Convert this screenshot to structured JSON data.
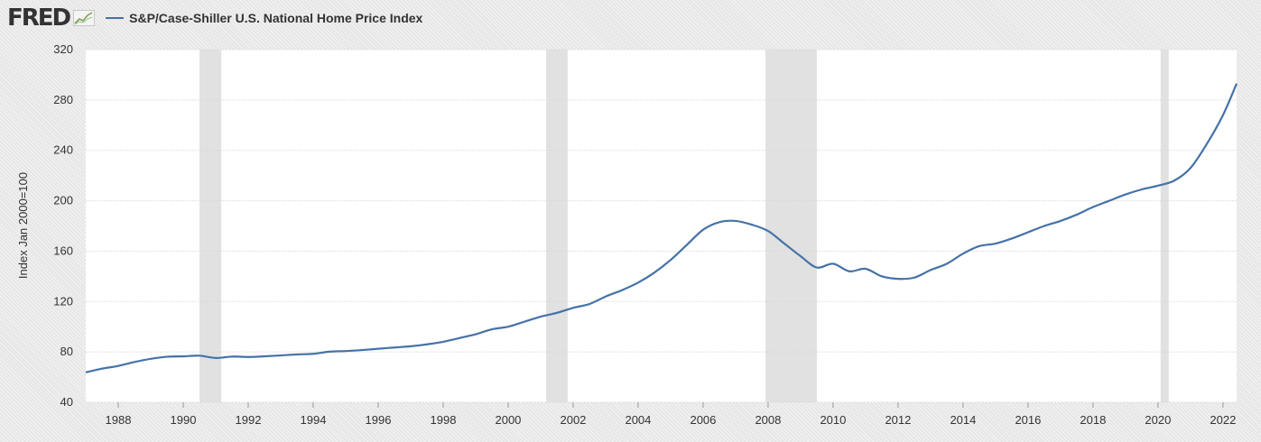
{
  "header": {
    "logo": "FRED",
    "logo_icon": "line-chart-icon"
  },
  "colors": {
    "series": "#4572a7",
    "recession": "#e1e1e1",
    "grid": "#d8d8d8",
    "plot_background": "#ffffff"
  },
  "chart_data": {
    "type": "line",
    "title": "",
    "xlabel": "",
    "ylabel": "Index Jan 2000=100",
    "xlim": [
      1987.0,
      2022.42
    ],
    "ylim": [
      40,
      320
    ],
    "yticks": [
      40,
      80,
      120,
      160,
      200,
      240,
      280,
      320
    ],
    "xticks": [
      1988,
      1990,
      1992,
      1994,
      1996,
      1998,
      2000,
      2002,
      2004,
      2006,
      2008,
      2010,
      2012,
      2014,
      2016,
      2018,
      2020,
      2022
    ],
    "grid": true,
    "legend_position": "top-left",
    "recessions": [
      [
        1990.5,
        1991.17
      ],
      [
        2001.17,
        2001.83
      ],
      [
        2007.92,
        2009.5
      ],
      [
        2020.08,
        2020.33
      ]
    ],
    "series": [
      {
        "name": "S&P/Case-Shiller U.S. National Home Price Index",
        "x": [
          1987.0,
          1987.5,
          1988.0,
          1988.5,
          1989.0,
          1989.5,
          1990.0,
          1990.5,
          1991.0,
          1991.5,
          1992.0,
          1992.5,
          1993.0,
          1993.5,
          1994.0,
          1994.5,
          1995.0,
          1995.5,
          1996.0,
          1996.5,
          1997.0,
          1997.5,
          1998.0,
          1998.5,
          1999.0,
          1999.5,
          2000.0,
          2000.5,
          2001.0,
          2001.5,
          2002.0,
          2002.5,
          2003.0,
          2003.5,
          2004.0,
          2004.5,
          2005.0,
          2005.5,
          2006.0,
          2006.5,
          2007.0,
          2007.5,
          2008.0,
          2008.5,
          2009.0,
          2009.5,
          2010.0,
          2010.5,
          2011.0,
          2011.5,
          2012.0,
          2012.5,
          2013.0,
          2013.5,
          2014.0,
          2014.5,
          2015.0,
          2015.5,
          2016.0,
          2016.5,
          2017.0,
          2017.5,
          2018.0,
          2018.5,
          2019.0,
          2019.5,
          2020.0,
          2020.5,
          2021.0,
          2021.5,
          2022.0,
          2022.42
        ],
        "values": [
          63.8,
          66.7,
          68.9,
          72.0,
          74.5,
          76.2,
          76.5,
          77.0,
          75.2,
          76.3,
          76.0,
          76.5,
          77.2,
          78.0,
          78.5,
          80.2,
          80.7,
          81.5,
          82.5,
          83.5,
          84.5,
          86.0,
          88.0,
          91.0,
          94.0,
          98.0,
          100.0,
          104.0,
          108.0,
          111.0,
          115.0,
          118.0,
          124.0,
          129.0,
          135.0,
          143.0,
          153.0,
          165.0,
          177.0,
          183.0,
          184.0,
          181.0,
          176.0,
          166.0,
          156.0,
          147.0,
          150.0,
          144.0,
          146.0,
          140.0,
          138.0,
          139.0,
          145.0,
          150.0,
          158.0,
          164.0,
          166.0,
          170.0,
          175.0,
          180.0,
          184.0,
          189.0,
          195.0,
          200.0,
          205.0,
          209.0,
          212.0,
          216.0,
          226.0,
          245.0,
          268.0,
          293.0
        ]
      }
    ]
  }
}
